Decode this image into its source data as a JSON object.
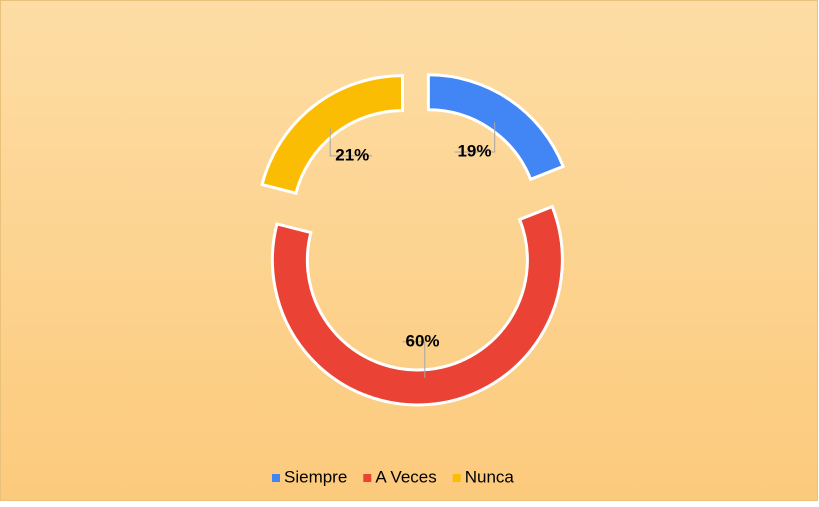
{
  "chart_data": {
    "type": "donut",
    "categories": [
      "Siempre",
      "A Veces",
      "Nunca"
    ],
    "values": [
      19,
      60,
      21
    ],
    "value_labels": [
      "19%",
      "60%",
      "21%"
    ],
    "colors": [
      "#4285f4",
      "#ea4335",
      "#fbbc04"
    ],
    "legend": "bottom"
  }
}
